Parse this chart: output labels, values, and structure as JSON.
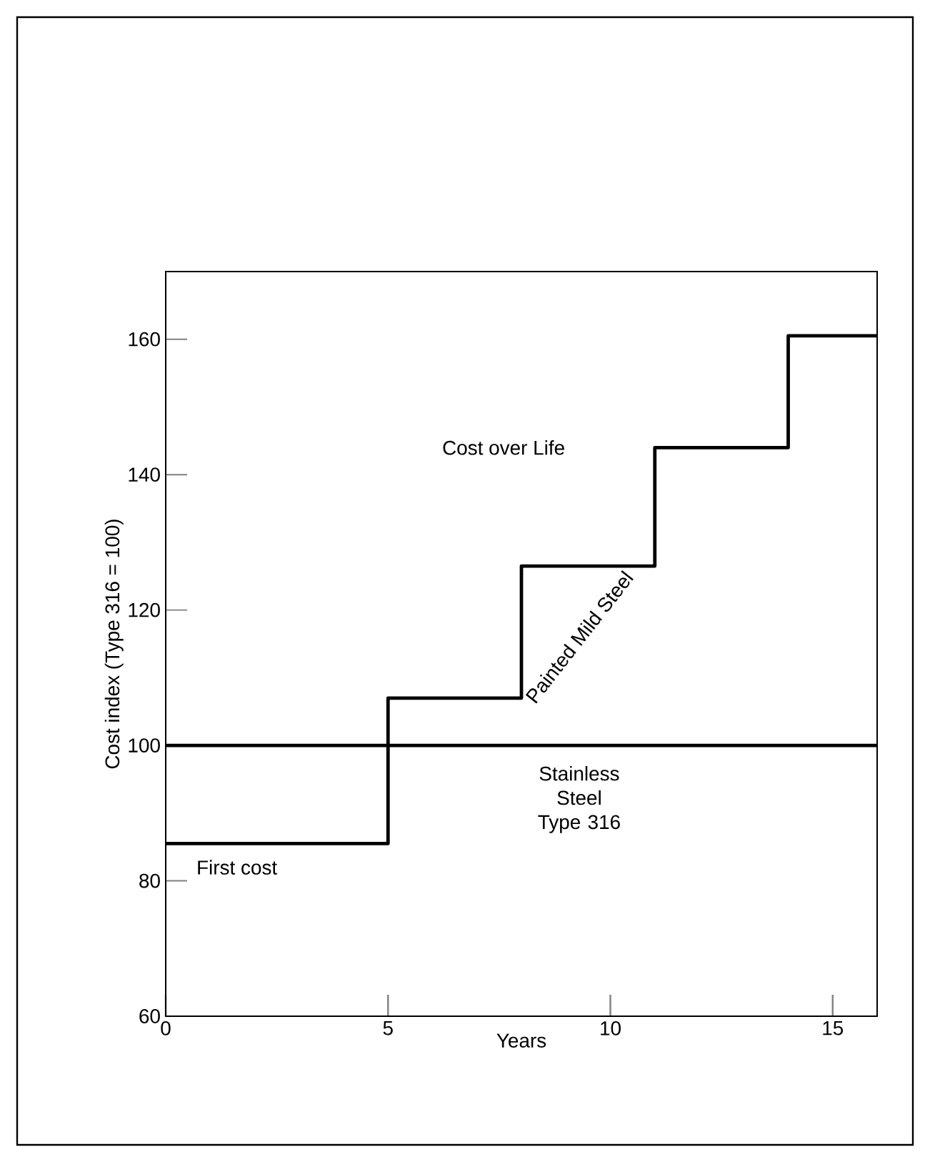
{
  "chart_data": {
    "type": "step",
    "xlabel": "Years",
    "ylabel": "Cost index (Type 316 = 100)",
    "xlim": [
      0,
      16
    ],
    "ylim": [
      60,
      170
    ],
    "xticks": [
      0,
      5,
      10,
      15
    ],
    "yticks": [
      60,
      80,
      100,
      120,
      140,
      160
    ],
    "series": [
      {
        "name": "Painted Mild Steel",
        "color": "#000000",
        "x": [
          0,
          5,
          8,
          11,
          14,
          16
        ],
        "values": [
          85.5,
          107,
          126.5,
          144,
          160.5,
          160.5
        ]
      },
      {
        "name": "Stainless Steel Type 316",
        "type": "line",
        "color": "#000000",
        "x": [
          0,
          16
        ],
        "values": [
          100,
          100
        ]
      }
    ],
    "annotations": [
      "First cost",
      "Cost over Life"
    ]
  }
}
